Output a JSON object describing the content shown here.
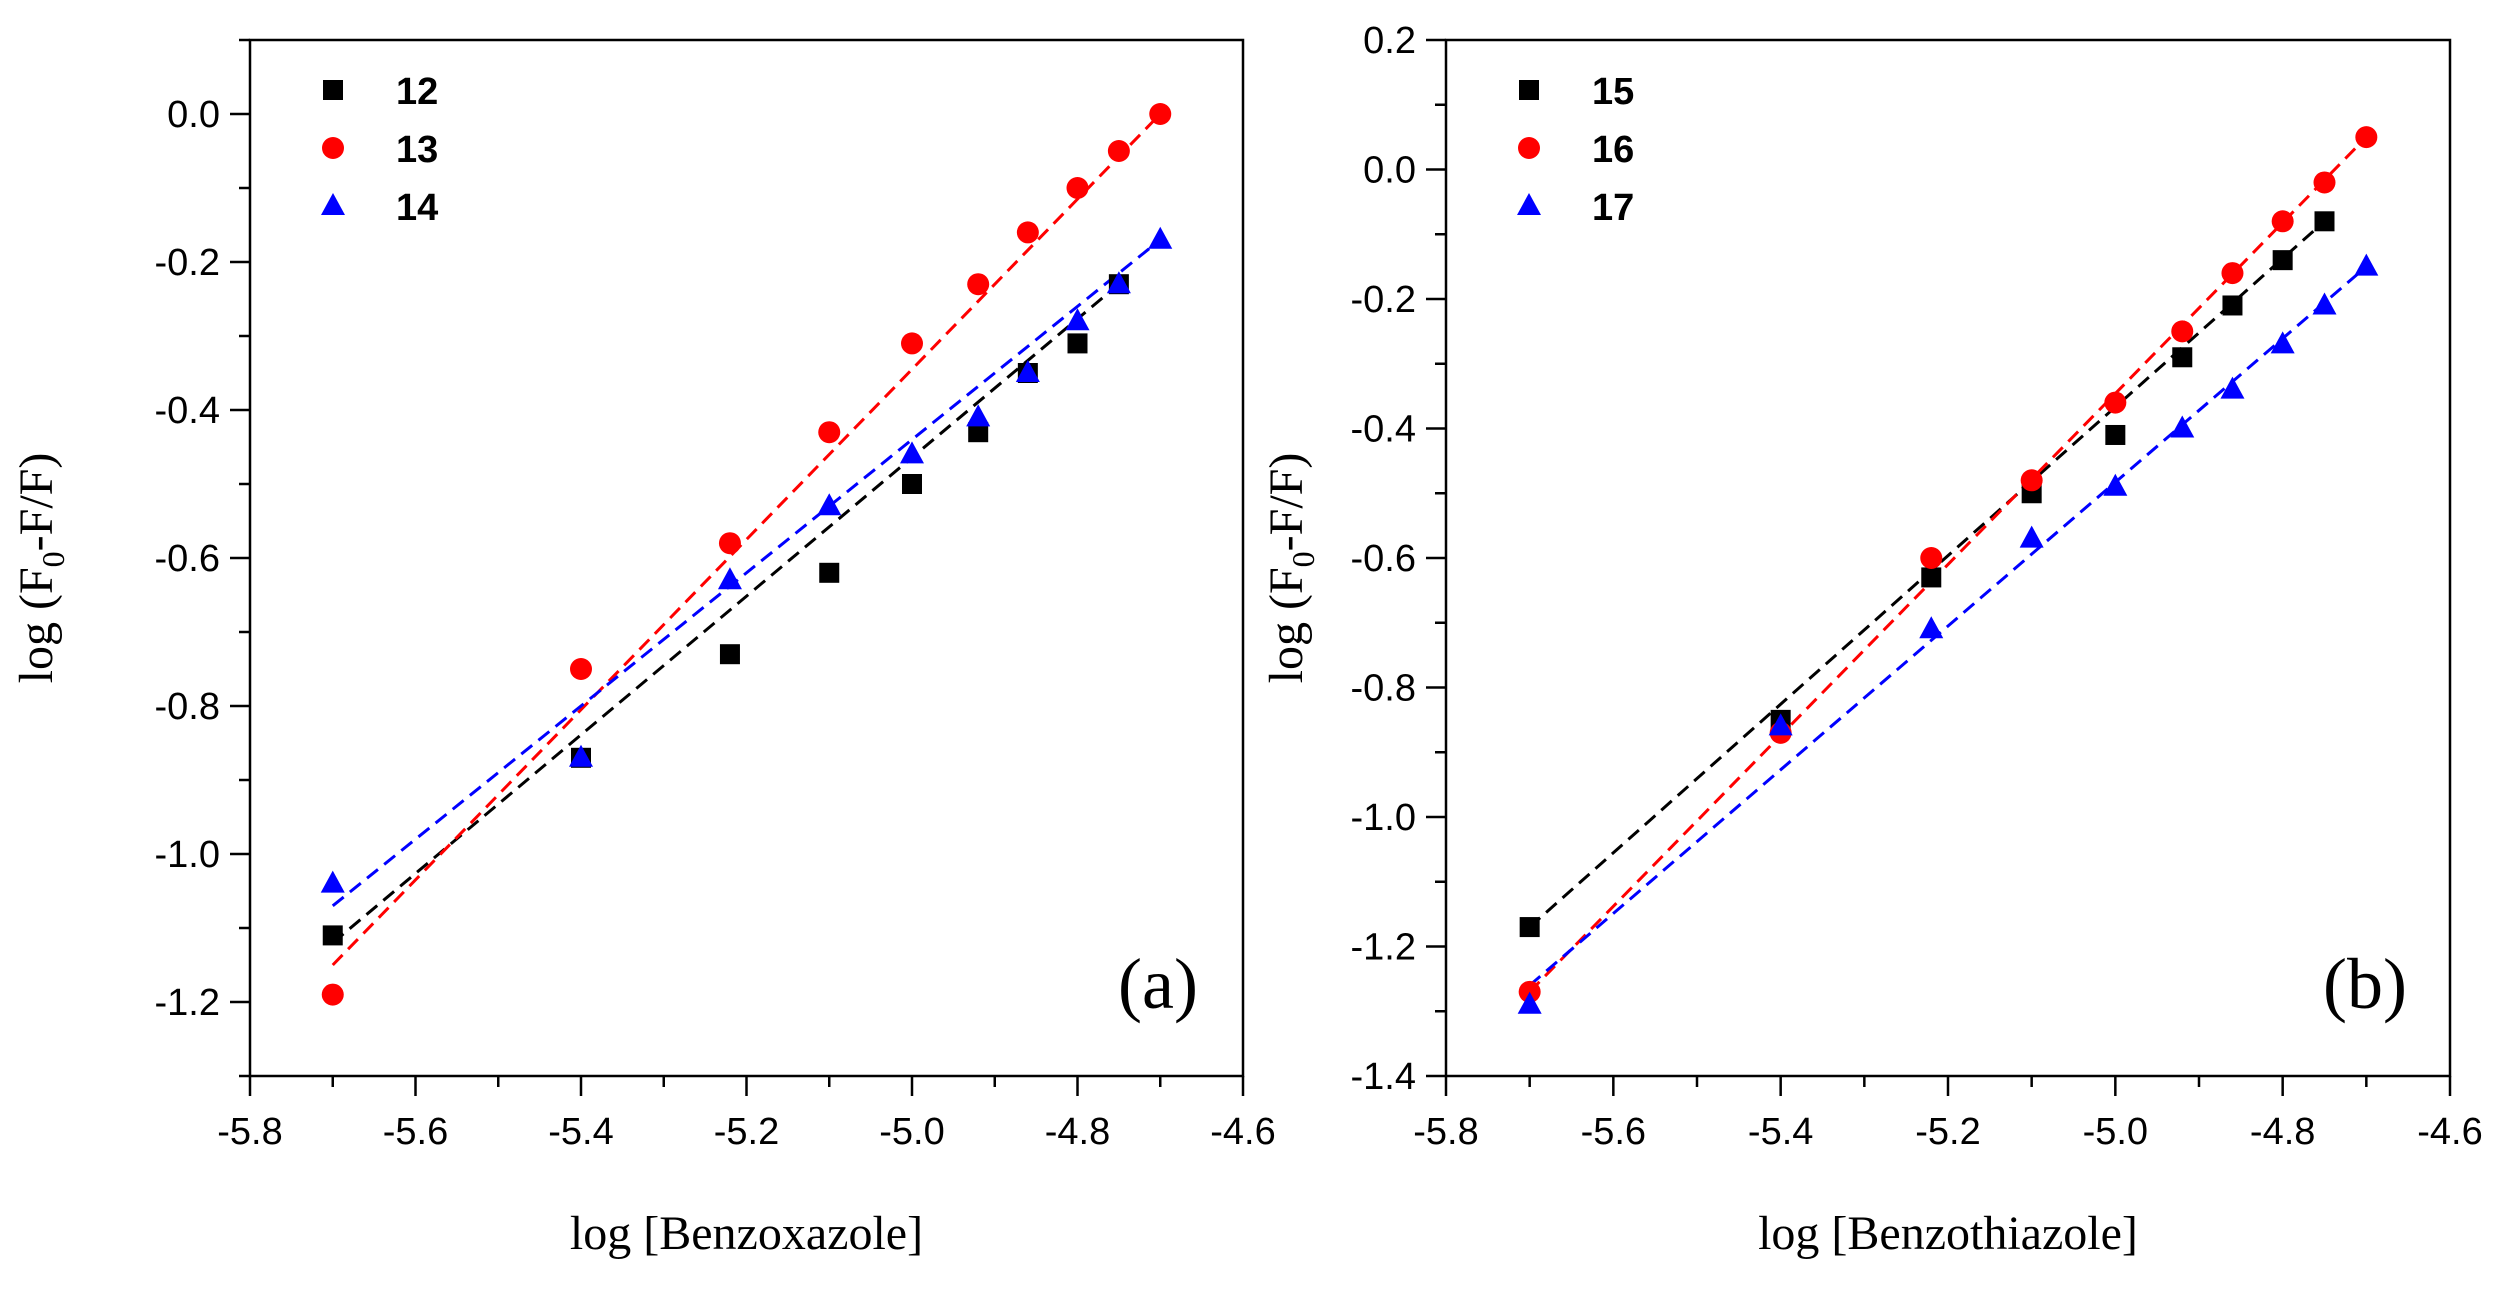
{
  "chart_data": [
    {
      "type": "scatter",
      "panel": "(a)",
      "xlabel": "log [Benzoxazole]",
      "ylabel": "log (F0-F/F)",
      "xlim": [
        -5.8,
        -4.6
      ],
      "ylim": [
        -1.3,
        0.1
      ],
      "xticks": [
        -5.8,
        -5.6,
        -5.4,
        -5.2,
        -5.0,
        -4.8,
        -4.6
      ],
      "yticks": [
        -1.2,
        -1.0,
        -0.8,
        -0.6,
        -0.4,
        -0.2,
        0.0
      ],
      "xtick_labels": [
        "-5.8",
        "-5.6",
        "-5.4",
        "-5.2",
        "-5.0",
        "-4.8",
        "-4.6"
      ],
      "ytick_labels": [
        "-1.2",
        "-1.0",
        "-0.8",
        "-0.6",
        "-0.4",
        "-0.2",
        "0.0"
      ],
      "legend_position": "top-left",
      "series": [
        {
          "name": "12",
          "marker": "square",
          "color": "#000000",
          "x": [
            -5.7,
            -5.4,
            -5.22,
            -5.1,
            -5.0,
            -4.92,
            -4.86,
            -4.8,
            -4.75
          ],
          "y": [
            -1.11,
            -0.87,
            -0.73,
            -0.62,
            -0.5,
            -0.43,
            -0.35,
            -0.31,
            -0.23
          ],
          "fit": [
            [
              -5.7,
              -1.12
            ],
            [
              -4.75,
              -0.23
            ]
          ]
        },
        {
          "name": "13",
          "marker": "circle",
          "color": "#ff0000",
          "x": [
            -5.7,
            -5.4,
            -5.22,
            -5.1,
            -5.0,
            -4.92,
            -4.86,
            -4.8,
            -4.75,
            -4.7
          ],
          "y": [
            -1.19,
            -0.75,
            -0.58,
            -0.43,
            -0.31,
            -0.23,
            -0.16,
            -0.1,
            -0.05,
            0.0
          ],
          "fit": [
            [
              -5.7,
              -1.15
            ],
            [
              -4.7,
              0.0
            ]
          ]
        },
        {
          "name": "14",
          "marker": "triangle",
          "color": "#0000ff",
          "x": [
            -5.7,
            -5.4,
            -5.22,
            -5.1,
            -5.0,
            -4.92,
            -4.86,
            -4.8,
            -4.75,
            -4.7
          ],
          "y": [
            -1.04,
            -0.87,
            -0.63,
            -0.53,
            -0.46,
            -0.41,
            -0.35,
            -0.28,
            -0.23,
            -0.17
          ],
          "fit": [
            [
              -5.7,
              -1.07
            ],
            [
              -4.7,
              -0.17
            ]
          ]
        }
      ]
    },
    {
      "type": "scatter",
      "panel": "(b)",
      "xlabel": "log [Benzothiazole]",
      "ylabel": "log (F0-F/F)",
      "xlim": [
        -5.8,
        -4.6
      ],
      "ylim": [
        -1.4,
        0.2
      ],
      "xticks": [
        -5.8,
        -5.6,
        -5.4,
        -5.2,
        -5.0,
        -4.8,
        -4.6
      ],
      "yticks": [
        -1.4,
        -1.2,
        -1.0,
        -0.8,
        -0.6,
        -0.4,
        -0.2,
        0.0,
        0.2
      ],
      "xtick_labels": [
        "-5.8",
        "-5.6",
        "-5.4",
        "-5.2",
        "-5.0",
        "-4.8",
        "-4.6"
      ],
      "ytick_labels": [
        "-1.4",
        "-1.2",
        "-1.0",
        "-0.8",
        "-0.6",
        "-0.4",
        "-0.2",
        "0.0",
        "0.2"
      ],
      "legend_position": "top-left",
      "series": [
        {
          "name": "15",
          "marker": "square",
          "color": "#000000",
          "x": [
            -5.7,
            -5.4,
            -5.22,
            -5.1,
            -5.0,
            -4.92,
            -4.86,
            -4.8,
            -4.75
          ],
          "y": [
            -1.17,
            -0.85,
            -0.63,
            -0.5,
            -0.41,
            -0.29,
            -0.21,
            -0.14,
            -0.08
          ],
          "fit": [
            [
              -5.7,
              -1.17
            ],
            [
              -4.75,
              -0.08
            ]
          ]
        },
        {
          "name": "16",
          "marker": "circle",
          "color": "#ff0000",
          "x": [
            -5.7,
            -5.4,
            -5.22,
            -5.1,
            -5.0,
            -4.92,
            -4.86,
            -4.8,
            -4.75,
            -4.7
          ],
          "y": [
            -1.27,
            -0.87,
            -0.6,
            -0.48,
            -0.36,
            -0.25,
            -0.16,
            -0.08,
            -0.02,
            0.05
          ],
          "fit": [
            [
              -5.7,
              -1.27
            ],
            [
              -4.7,
              0.05
            ]
          ]
        },
        {
          "name": "17",
          "marker": "triangle",
          "color": "#0000ff",
          "x": [
            -5.7,
            -5.4,
            -5.22,
            -5.1,
            -5.0,
            -4.92,
            -4.86,
            -4.8,
            -4.75,
            -4.7
          ],
          "y": [
            -1.29,
            -0.86,
            -0.71,
            -0.57,
            -0.49,
            -0.4,
            -0.34,
            -0.27,
            -0.21,
            -0.15
          ],
          "fit": [
            [
              -5.7,
              -1.26
            ],
            [
              -4.7,
              -0.15
            ]
          ]
        }
      ]
    }
  ]
}
